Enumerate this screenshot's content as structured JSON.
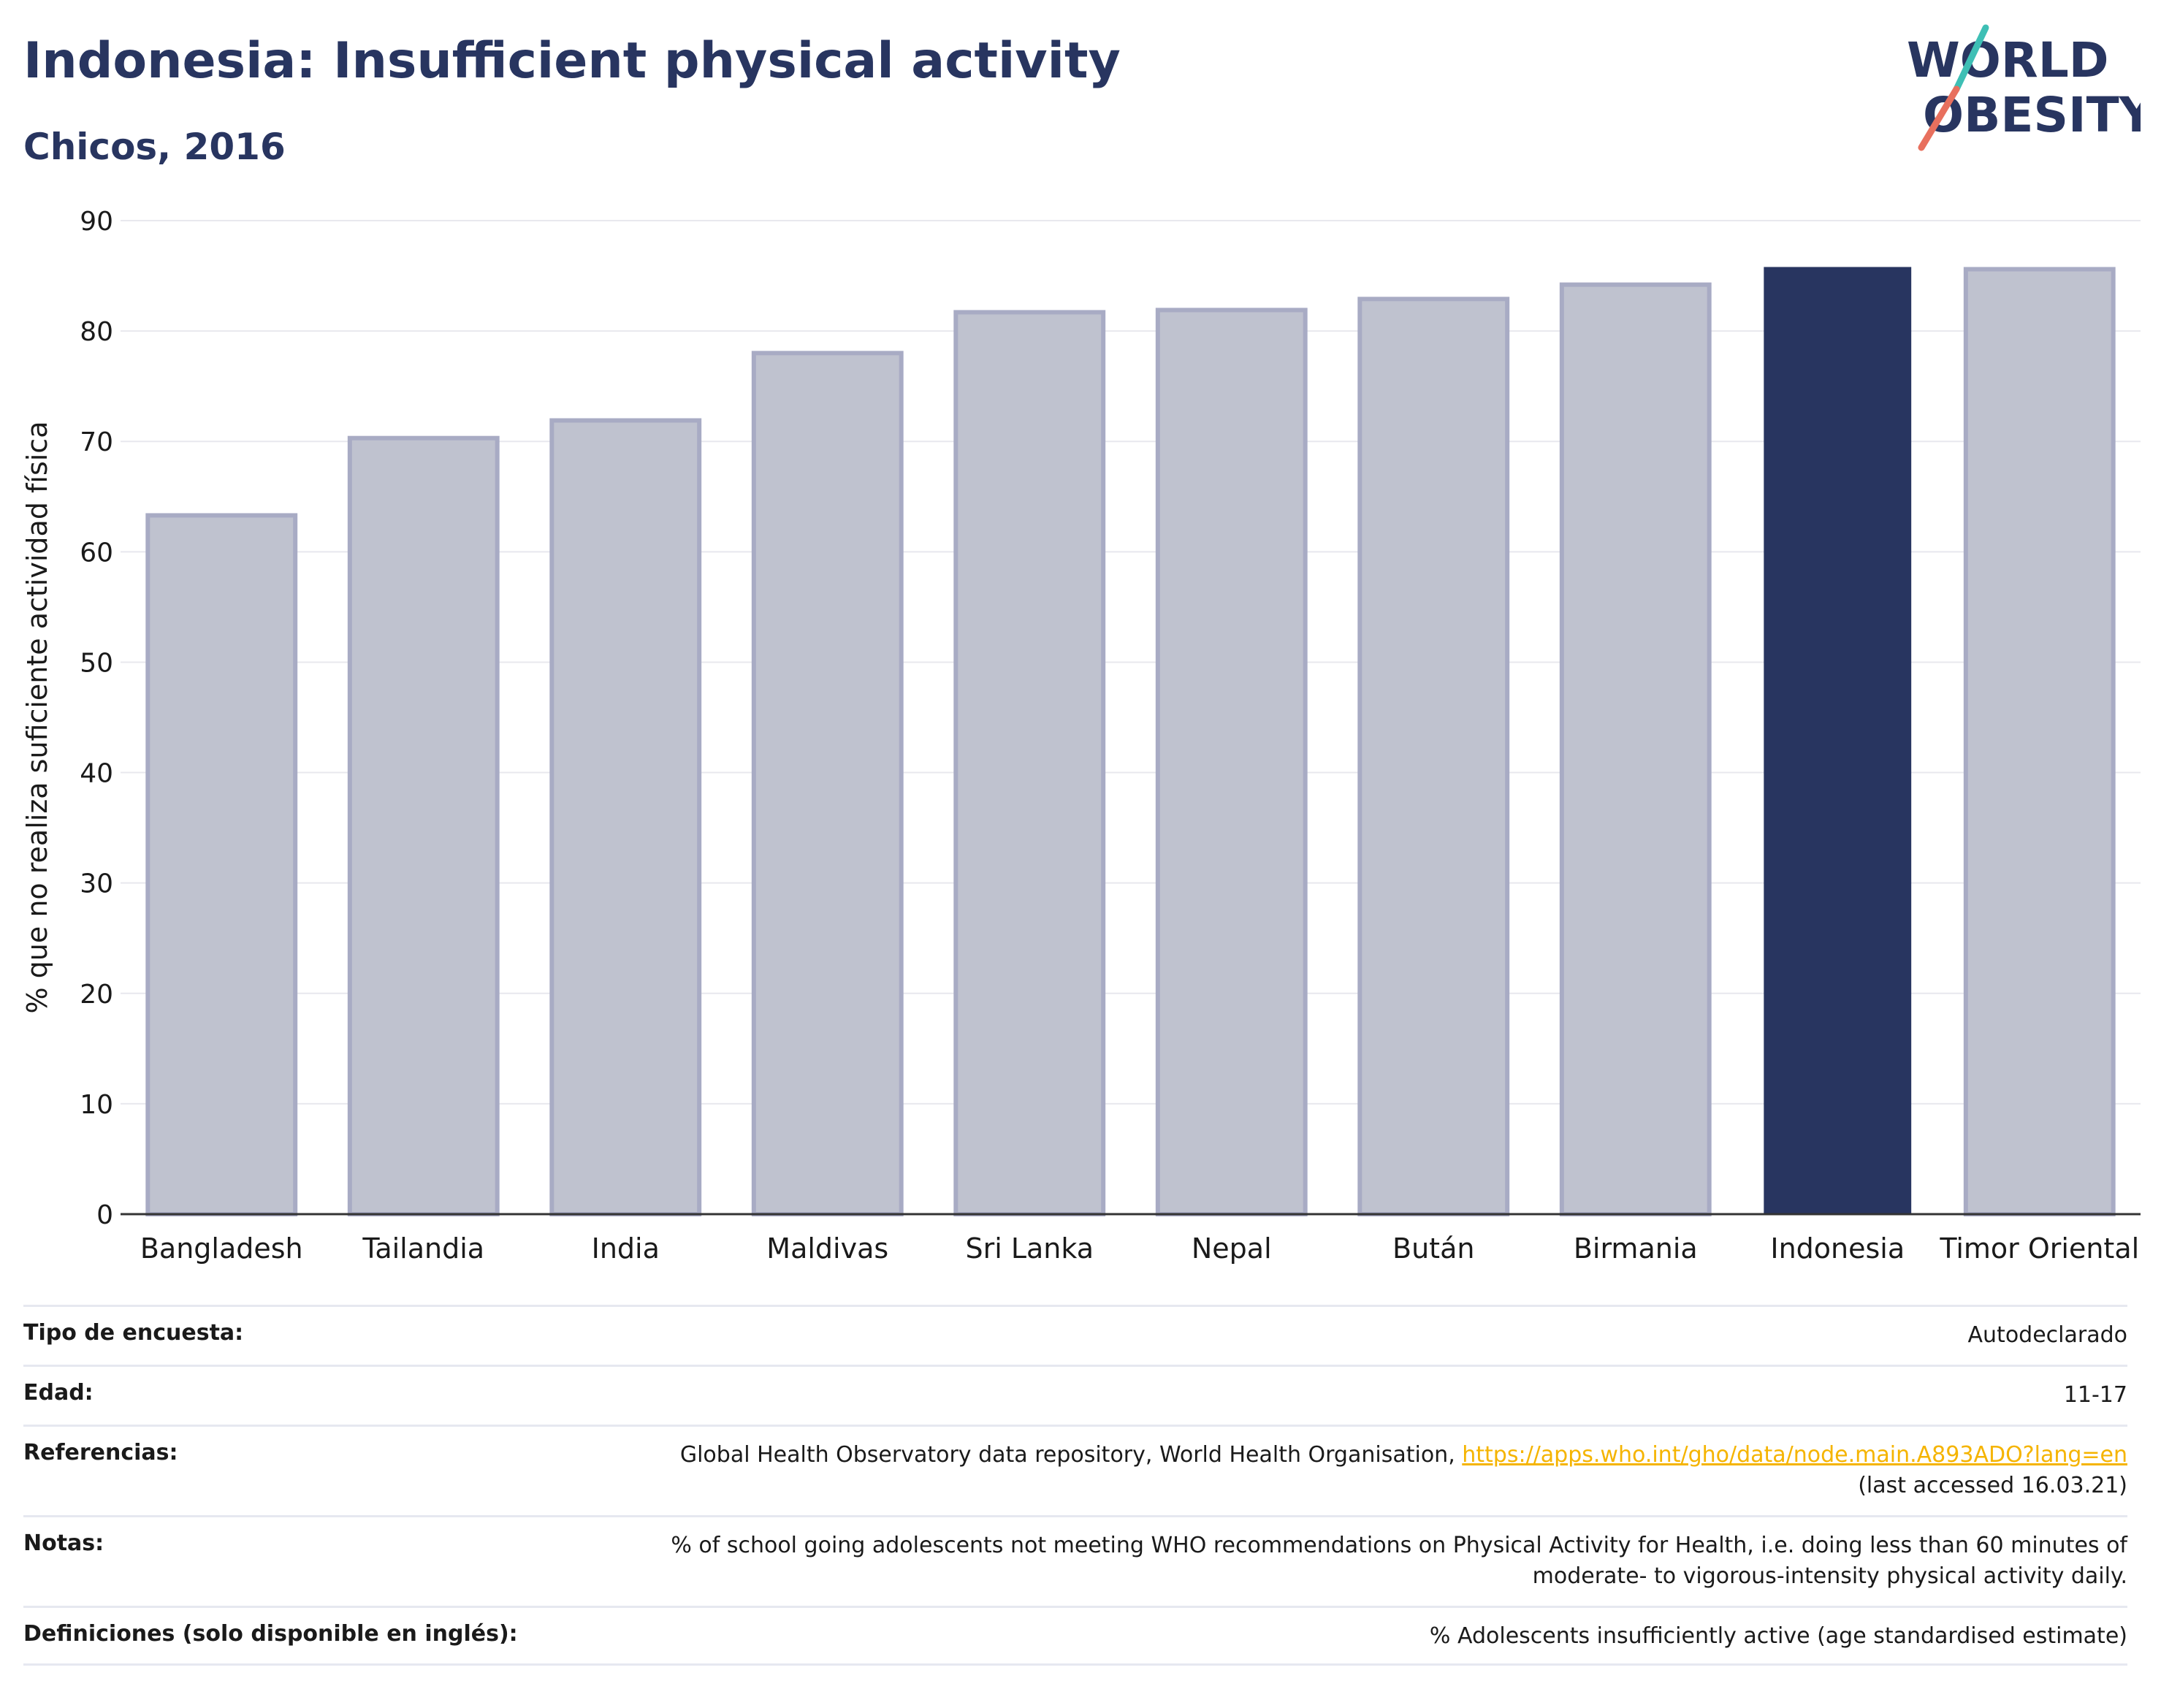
{
  "header": {
    "title": "Indonesia: Insufficient physical activity",
    "subtitle": "Chicos, 2016",
    "logo": {
      "line1": "WORLD",
      "line2": "OBESITY",
      "accent_colors": [
        "#3ebfb5",
        "#e8705e"
      ]
    }
  },
  "chart_data": {
    "type": "bar",
    "categories": [
      "Bangladesh",
      "Tailandia",
      "India",
      "Maldivas",
      "Sri Lanka",
      "Nepal",
      "Bután",
      "Birmania",
      "Indonesia",
      "Timor Oriental"
    ],
    "values": [
      63.3,
      70.3,
      71.9,
      78.0,
      81.7,
      81.9,
      82.9,
      84.2,
      85.8,
      85.6
    ],
    "highlight": "Indonesia",
    "xlabel": "",
    "ylabel": "% que no realiza suficiente actividad física",
    "ylim": [
      0,
      90
    ],
    "yticks": [
      0,
      10,
      20,
      30,
      40,
      50,
      60,
      70,
      80,
      90
    ],
    "grid": true,
    "legend": "none",
    "colors": {
      "highlight": "#283560",
      "other": "#bfc2cf",
      "other_outline": "#a8abc4"
    }
  },
  "meta": [
    {
      "label": "Tipo de encuesta:",
      "lines": [
        "Autodeclarado"
      ]
    },
    {
      "label": "Edad:",
      "lines": [
        "11-17"
      ]
    },
    {
      "label": "Referencias:",
      "lines": [
        "Global Health Observatory data repository, World Health Organisation, ",
        "(last accessed 16.03.21)"
      ],
      "link": "https://apps.who.int/gho/data/node.main.A893ADO?lang=en"
    },
    {
      "label": "Notas:",
      "lines": [
        "% of school going adolescents not meeting WHO recommendations on Physical Activity for Health, i.e. doing less than 60 minutes of",
        "moderate- to vigorous-intensity physical activity daily."
      ]
    },
    {
      "label": "Definiciones (solo disponible en inglés):",
      "lines": [
        "% Adolescents insufficiently active (age standardised estimate)"
      ]
    }
  ]
}
